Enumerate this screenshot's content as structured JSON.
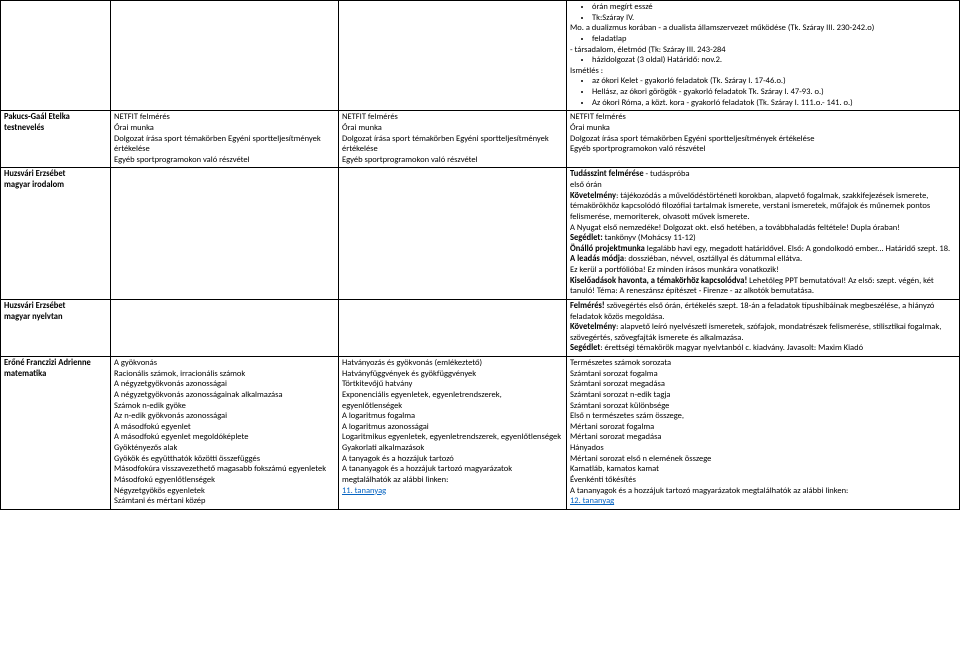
{
  "rows": [
    {
      "teacher": "",
      "subject": "",
      "c1": [],
      "c2": [],
      "c3": [
        {
          "type": "li",
          "text": "órán megírt esszé"
        },
        {
          "type": "li",
          "text": "Tk:Száray IV."
        },
        {
          "type": "p",
          "text": "Mo. a dualizmus korában - a dualista államszervezet működése (Tk. Száray III. 230-242.o)"
        },
        {
          "type": "li",
          "text": "feladatlap"
        },
        {
          "type": "p",
          "text": "- társadalom, életmód (Tk: Száray III. 243-284"
        },
        {
          "type": "li",
          "text": "házidolgozat       (3 oldal) Határidő: nov.2."
        },
        {
          "type": "p",
          "text": "Ismétlés :"
        },
        {
          "type": "li",
          "text": "az ókori Kelet - gyakorló feladatok (Tk. Száray I. 17-46.o.)"
        },
        {
          "type": "li",
          "text": "Hellász, az ókori görögök - gyakorló feladatok Tk. Száray I. 47-93. o.)"
        },
        {
          "type": "li",
          "text": "Az ókori Róma, a közt. kora - gyakorló feladatok (Tk. Száray I. 111.o.- 141. o.)"
        }
      ]
    },
    {
      "teacher": "Pakucs-Gaál Etelka",
      "subject": "testnevelés",
      "c1": [
        {
          "type": "p",
          "text": "NETFIT felmérés"
        },
        {
          "type": "p",
          "text": " Órai munka"
        },
        {
          "type": "p",
          "text": "Dolgozat írása sport témakörben Egyéni sportteljesítmények értékelése"
        },
        {
          "type": "p",
          "text": "Egyéb sportprogramokon való részvétel"
        }
      ],
      "c2": [
        {
          "type": "p",
          "text": "NETFIT felmérés"
        },
        {
          "type": "p",
          "text": " Órai munka"
        },
        {
          "type": "p",
          "text": "Dolgozat írása sport témakörben Egyéni sportteljesítmények értékelése"
        },
        {
          "type": "p",
          "text": "Egyéb sportprogramokon való részvétel"
        }
      ],
      "c3": [
        {
          "type": "p",
          "text": "NETFIT felmérés"
        },
        {
          "type": "p",
          "text": " Órai munka"
        },
        {
          "type": "p",
          "text": "Dolgozat írása sport témakörben Egyéni sportteljesítmények értékelése"
        },
        {
          "type": "p",
          "text": "Egyéb sportprogramokon való részvétel"
        }
      ]
    },
    {
      "teacher": "Huzsvári Erzsébet",
      "subject": "magyar irodalom",
      "c1": [],
      "c2": [],
      "c3": [
        {
          "type": "p",
          "html": "<span class=\"bold\">Tudásszint felmérése</span> - tudáspróba"
        },
        {
          "type": "p",
          "text": "első órán"
        },
        {
          "type": "p",
          "html": "<span class=\"bold\">Követelmény</span>: tájékozódás a művelődéstörténeti korokban, alapvető fogalmak, szakkifejezések ismerete, témakörökhöz kapcsolódó filozófiai tartalmak ismerete, verstani ismeretek, műfajok és műnemek pontos felismerése, memoriterek, olvasott művek ismerete."
        },
        {
          "type": "p",
          "text": "A Nyugat első nemzedéke! Dolgozat okt. első hetében, a továbbhaladás feltétele! Dupla óraban!"
        },
        {
          "type": "p",
          "html": "<span class=\"bold\">Segédlet:</span> tankönyv (Mohácsy 11-12)"
        },
        {
          "type": "p",
          "html": " <span class=\"bold\">Önálló projektmunka</span> legalább havi egy, megadott határidővel. Első: A gondolkodó ember... Határidő szept. 18."
        },
        {
          "type": "p",
          "html": " <span class=\"bold\">A leadás módja</span>: dossziéban, névvel, osztállyal és dátummal ellátva."
        },
        {
          "type": "p",
          "text": "Ez kerül a portfólióba! Ez minden írásos munkára vonatkozik!"
        },
        {
          "type": "p",
          "html": "<span class=\"bold\">Kiselőadások havonta, a témakörhöz kapcsolódva!</span> Lehetőleg PPT bemutatóval! Az első: szept. végén, két tanuló! Téma: A reneszánsz építészet  - Firenze -  az alkotók bemutatása."
        }
      ]
    },
    {
      "teacher": "Huzsvári Erzsébet",
      "subject": "magyar nyelvtan",
      "c1": [],
      "c2": [],
      "c3": [
        {
          "type": "p",
          "html": "<span class=\"bold\">Felmérés!</span> szövegértés  első órán, értékelés szept. 18-án a feladatok típushibáinak megbeszélése, a hiányzó feladatok közös megoldása."
        },
        {
          "type": "p",
          "html": "<span class=\"bold\">Követelmény</span>: alapvető leíró nyelvészeti ismeretek, szófajok, mondatrészek felismerése, stilisztikai fogalmak, szövegértés, szövegfajták ismerete és alkalmazása."
        },
        {
          "type": "p",
          "html": "<span class=\"bold\">Segédlet</span>: érettségi témakörök magyar nyelvtanból c. kiadvány. Javasolt: Maxim Kiadó"
        }
      ]
    },
    {
      "teacher": "Erőné Franczizi Adrienne",
      "subject": "matematika",
      "c1": [
        {
          "type": "p",
          "text": "A gyökvonás"
        },
        {
          "type": "p",
          "text": "Racionális számok, irracionális számok"
        },
        {
          "type": "p",
          "text": "A négyzetgyökvonás azonosságai"
        },
        {
          "type": "p",
          "text": "A négyzetgyökvonás azonosságainak alkalmazása"
        },
        {
          "type": "p",
          "text": "Számok n-edik gyöke"
        },
        {
          "type": "p",
          "text": "Az n-edik gyökvonás azonosságai"
        },
        {
          "type": "p",
          "text": "A másodfokú egyenlet"
        },
        {
          "type": "p",
          "text": "A másodfokú egyenlet megoldóképlete"
        },
        {
          "type": "p",
          "text": "Gyöktényezős alak"
        },
        {
          "type": "p",
          "text": "Gyökök és együtthatók közötti összefüggés"
        },
        {
          "type": "p",
          "text": "Másodfokúra visszavezethető magasabb fokszámú egyenletek"
        },
        {
          "type": "p",
          "text": "Másodfokú egyenlőtlenségek"
        },
        {
          "type": "p",
          "text": "Négyzetgyökös egyenletek"
        },
        {
          "type": "p",
          "text": "Számtani és mértani közép"
        }
      ],
      "c2": [
        {
          "type": "p",
          "text": "Hatványozás és gyökvonás (emlékeztető)"
        },
        {
          "type": "p",
          "text": "Hatványfüggvények és gyökfüggvények"
        },
        {
          "type": "p",
          "text": "Törtkitevőjű hatvány"
        },
        {
          "type": "p",
          "text": "Exponenciális egyenletek, egyenletrendszerek, egyenlőtlenségek"
        },
        {
          "type": "p",
          "text": "A logaritmus fogalma"
        },
        {
          "type": "p",
          "text": "A logaritmus azonosságai"
        },
        {
          "type": "p",
          "text": "Logaritmikus egyenletek, egyenletrendszerek, egyenlőtlenségek"
        },
        {
          "type": "p",
          "text": "Gyakorlati alkalmazások"
        },
        {
          "type": "p",
          "text": " "
        },
        {
          "type": "p",
          "text": "A tanyagok és a hozzájuk tartozó"
        },
        {
          "type": "p",
          "text": " A tananyagok és a hozzájuk tartozó magyarázatok megtalálhatók az alábbi linken:"
        },
        {
          "type": "link",
          "text": "11. tananyag"
        }
      ],
      "c3": [
        {
          "type": "p",
          "text": "Természetes számok sorozata"
        },
        {
          "type": "p",
          "text": "Számtani sorozat fogalma"
        },
        {
          "type": "p",
          "text": "Számtani sorozat megadása"
        },
        {
          "type": "p",
          "text": "Számtani sorozat n-edik tagja"
        },
        {
          "type": "p",
          "text": "Számtani sorozat különbsége"
        },
        {
          "type": "p",
          "text": "Első n természetes szám összege,"
        },
        {
          "type": "p",
          "text": " "
        },
        {
          "type": "p",
          "text": "Mértani sorozat fogalma"
        },
        {
          "type": "p",
          "text": "Mértani sorozat megadása"
        },
        {
          "type": "p",
          "text": "Hányados"
        },
        {
          "type": "p",
          "text": "Mértani sorozat első n elemének összege"
        },
        {
          "type": "p",
          "text": "Kamatláb, kamatos kamat"
        },
        {
          "type": "p",
          "text": "Évenkénti tőkésítés"
        },
        {
          "type": "p",
          "text": "A tananyagok és a hozzájuk tartozó magyarázatok megtalálhatók az alábbi linken:"
        },
        {
          "type": "link",
          "text": "12. tananyag"
        }
      ]
    }
  ]
}
